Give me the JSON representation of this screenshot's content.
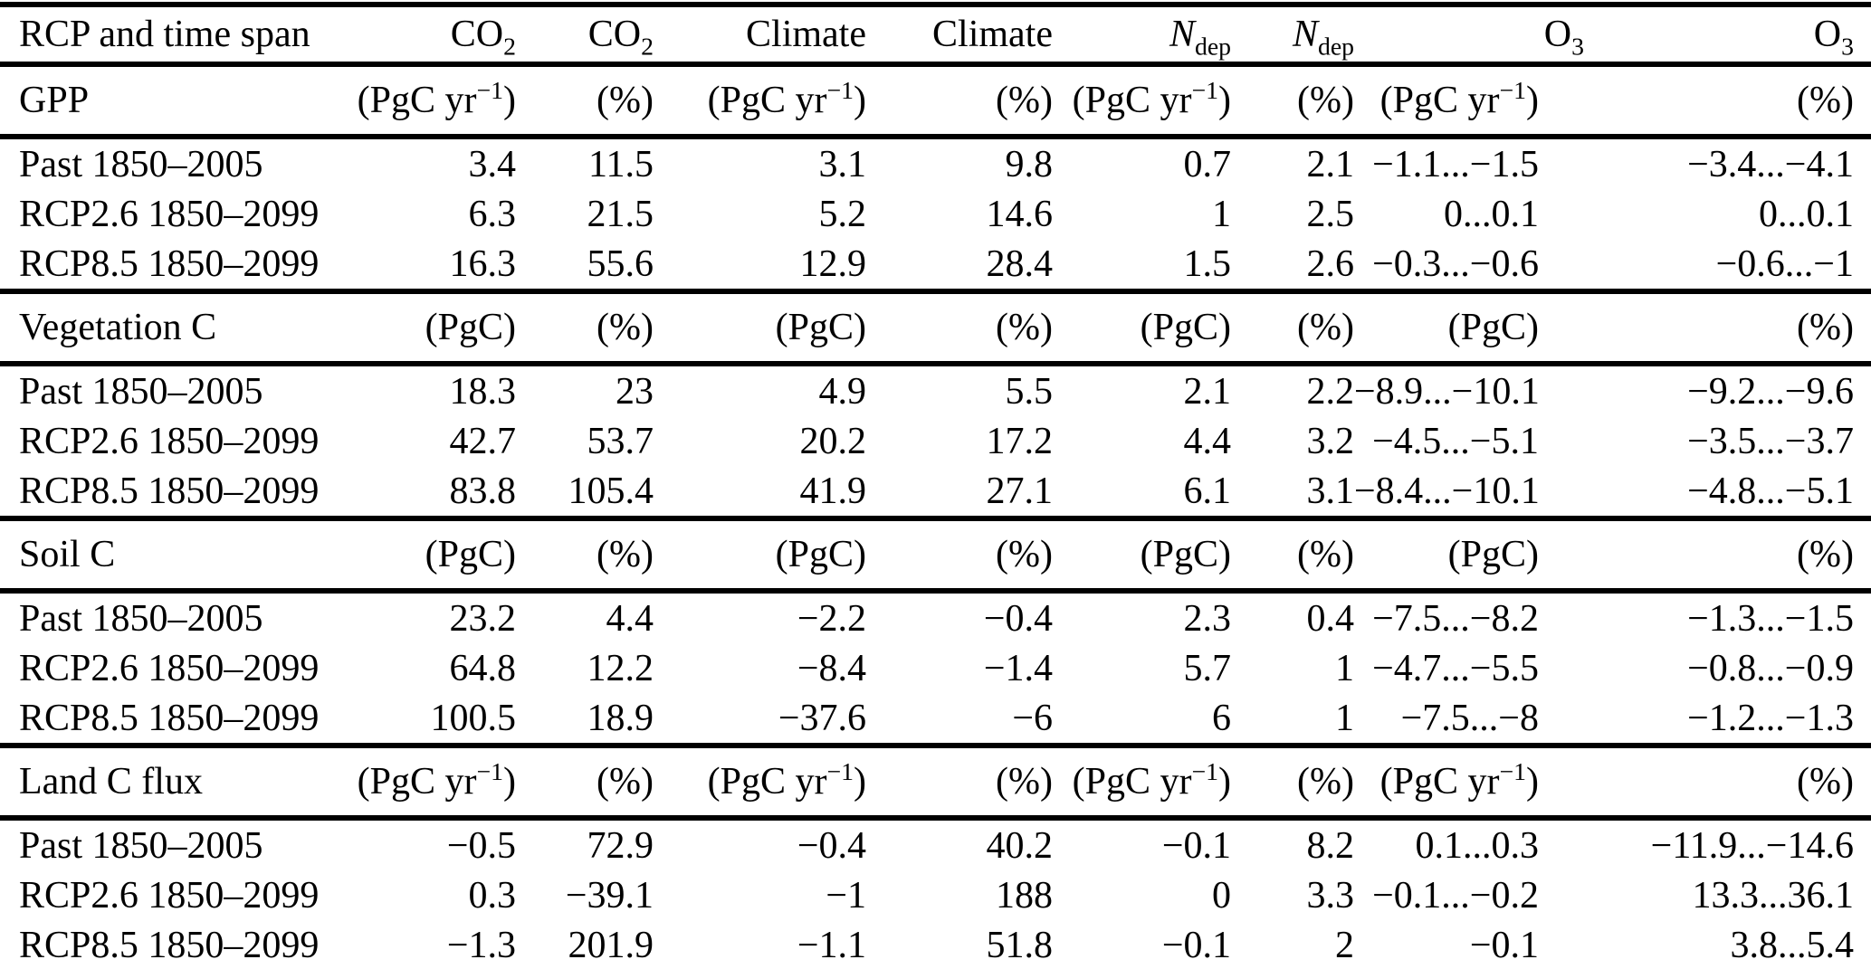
{
  "header": {
    "row_label": "RCP and time span",
    "columns": [
      "CO_2_",
      "CO_2_",
      "Climate",
      "Climate",
      "*N*_dep_",
      "*N*_dep_",
      "O_3_",
      "O_3_"
    ]
  },
  "sections": [
    {
      "label": "GPP",
      "units": [
        "(PgC yr^−1^)",
        "(%)",
        "(PgC yr^−1^)",
        "(%)",
        "(PgC yr^−1^)",
        "(%)",
        "(PgC yr^−1^)",
        "(%)"
      ],
      "rows": [
        {
          "label": "Past 1850–2005",
          "values": [
            "3.4",
            "11.5",
            "3.1",
            "9.8",
            "0.7",
            "2.1",
            "−1.1...−1.5",
            "−3.4...−4.1"
          ]
        },
        {
          "label": "RCP2.6 1850–2099",
          "values": [
            "6.3",
            "21.5",
            "5.2",
            "14.6",
            "1",
            "2.5",
            "0...0.1",
            "0...0.1"
          ]
        },
        {
          "label": "RCP8.5 1850–2099",
          "values": [
            "16.3",
            "55.6",
            "12.9",
            "28.4",
            "1.5",
            "2.6",
            "−0.3...−0.6",
            "−0.6...−1"
          ]
        }
      ]
    },
    {
      "label": "Vegetation C",
      "units": [
        "(PgC)",
        "(%)",
        "(PgC)",
        "(%)",
        "(PgC)",
        "(%)",
        "(PgC)",
        "(%)"
      ],
      "rows": [
        {
          "label": "Past 1850–2005",
          "values": [
            "18.3",
            "23",
            "4.9",
            "5.5",
            "2.1",
            "2.2",
            "−8.9...−10.1",
            "−9.2...−9.6"
          ]
        },
        {
          "label": "RCP2.6 1850–2099",
          "values": [
            "42.7",
            "53.7",
            "20.2",
            "17.2",
            "4.4",
            "3.2",
            "−4.5...−5.1",
            "−3.5...−3.7"
          ]
        },
        {
          "label": "RCP8.5 1850–2099",
          "values": [
            "83.8",
            "105.4",
            "41.9",
            "27.1",
            "6.1",
            "3.1",
            "−8.4...−10.1",
            "−4.8...−5.1"
          ]
        }
      ]
    },
    {
      "label": "Soil C",
      "units": [
        "(PgC)",
        "(%)",
        "(PgC)",
        "(%)",
        "(PgC)",
        "(%)",
        "(PgC)",
        "(%)"
      ],
      "rows": [
        {
          "label": "Past 1850–2005",
          "values": [
            "23.2",
            "4.4",
            "−2.2",
            "−0.4",
            "2.3",
            "0.4",
            "−7.5...−8.2",
            "−1.3...−1.5"
          ]
        },
        {
          "label": "RCP2.6 1850–2099",
          "values": [
            "64.8",
            "12.2",
            "−8.4",
            "−1.4",
            "5.7",
            "1",
            "−4.7...−5.5",
            "−0.8...−0.9"
          ]
        },
        {
          "label": "RCP8.5 1850–2099",
          "values": [
            "100.5",
            "18.9",
            "−37.6",
            "−6",
            "6",
            "1",
            "−7.5...−8",
            "−1.2...−1.3"
          ]
        }
      ]
    },
    {
      "label": "Land C flux",
      "units": [
        "(PgC yr^−1^)",
        "(%)",
        "(PgC yr^−1^)",
        "(%)",
        "(PgC yr^−1^)",
        "(%)",
        "(PgC yr^−1^)",
        "(%)"
      ],
      "rows": [
        {
          "label": "Past 1850–2005",
          "values": [
            "−0.5",
            "72.9",
            "−0.4",
            "40.2",
            "−0.1",
            "8.2",
            "0.1...0.3",
            "−11.9...−14.6"
          ]
        },
        {
          "label": "RCP2.6 1850–2099",
          "values": [
            "0.3",
            "−39.1",
            "−1",
            "188",
            "0",
            "3.3",
            "−0.1...−0.2",
            "13.3...36.1"
          ]
        },
        {
          "label": "RCP8.5 1850–2099",
          "values": [
            "−1.3",
            "201.9",
            "−1.1",
            "51.8",
            "−0.1",
            "2",
            "−0.1",
            "3.8...5.4"
          ]
        }
      ]
    }
  ]
}
